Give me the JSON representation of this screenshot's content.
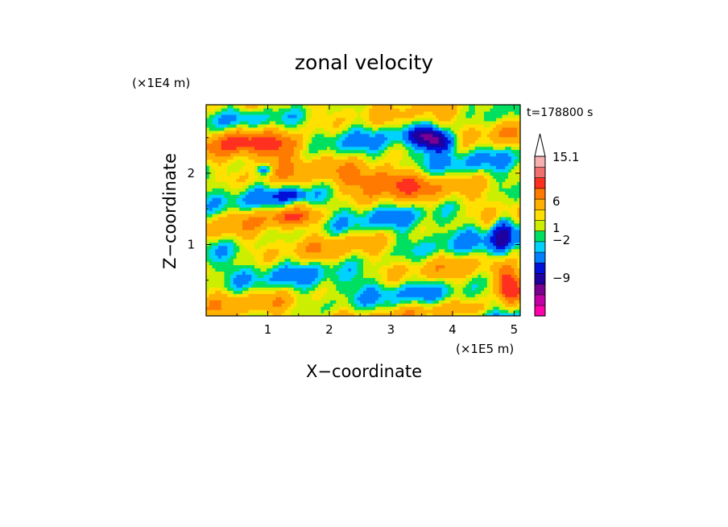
{
  "chart_data": {
    "type": "heatmap",
    "title": "zonal velocity",
    "xlabel": "X−coordinate",
    "ylabel": "Z−coordinate",
    "x_unit": "(×1E5 m)",
    "y_unit": "(×1E4 m)",
    "time_label": "t=178800 s",
    "xlim": [
      0,
      5.1
    ],
    "ylim": [
      0,
      2.96
    ],
    "x_ticks": [
      "1",
      "2",
      "3",
      "4",
      "5"
    ],
    "y_ticks": [
      "1",
      "2"
    ],
    "colorbar": {
      "labels": [
        "15.1",
        "6",
        "1",
        "−2",
        "−9"
      ],
      "colors": [
        "#ff00aa",
        "#c300a8",
        "#7a0091",
        "#1f00a0",
        "#0010d8",
        "#0080ff",
        "#00d2ff",
        "#00e060",
        "#ccee00",
        "#ffe000",
        "#ffb000",
        "#ff7a00",
        "#ff3020",
        "#f07070",
        "#f6b0b0"
      ],
      "extend": "max"
    },
    "blobs": [
      {
        "x": 1.2,
        "y": 2.4,
        "rx": 0.55,
        "ry": 0.2,
        "v": 6
      },
      {
        "x": 0.5,
        "y": 2.5,
        "rx": 0.35,
        "ry": 0.2,
        "v": 5
      },
      {
        "x": 2.9,
        "y": 1.9,
        "rx": 0.7,
        "ry": 0.18,
        "v": 5
      },
      {
        "x": 1.4,
        "y": 1.4,
        "rx": 0.55,
        "ry": 0.14,
        "v": 5
      },
      {
        "x": 3.75,
        "y": 2.45,
        "rx": 0.28,
        "ry": 0.14,
        "v": -9
      },
      {
        "x": 3.5,
        "y": 2.55,
        "rx": 0.3,
        "ry": 0.12,
        "v": -5
      },
      {
        "x": 4.8,
        "y": 1.1,
        "rx": 0.16,
        "ry": 0.35,
        "v": -6
      },
      {
        "x": 0.95,
        "y": 2.05,
        "rx": 0.12,
        "ry": 0.07,
        "v": -5
      },
      {
        "x": 1.35,
        "y": 1.7,
        "rx": 0.28,
        "ry": 0.08,
        "v": -4
      },
      {
        "x": 3.5,
        "y": 0.9,
        "rx": 0.8,
        "ry": 0.22,
        "v": -1.2
      },
      {
        "x": 3.0,
        "y": 2.8,
        "rx": 0.8,
        "ry": 0.18,
        "v": -1.2
      },
      {
        "x": 4.9,
        "y": 0.45,
        "rx": 0.18,
        "ry": 0.25,
        "v": 7
      },
      {
        "x": 4.0,
        "y": 0.1,
        "rx": 0.9,
        "ry": 0.12,
        "v": 3
      },
      {
        "x": 2.2,
        "y": 0.45,
        "rx": 0.9,
        "ry": 0.18,
        "v": -0.5
      }
    ],
    "grid": false,
    "legend": "colorbar right"
  }
}
